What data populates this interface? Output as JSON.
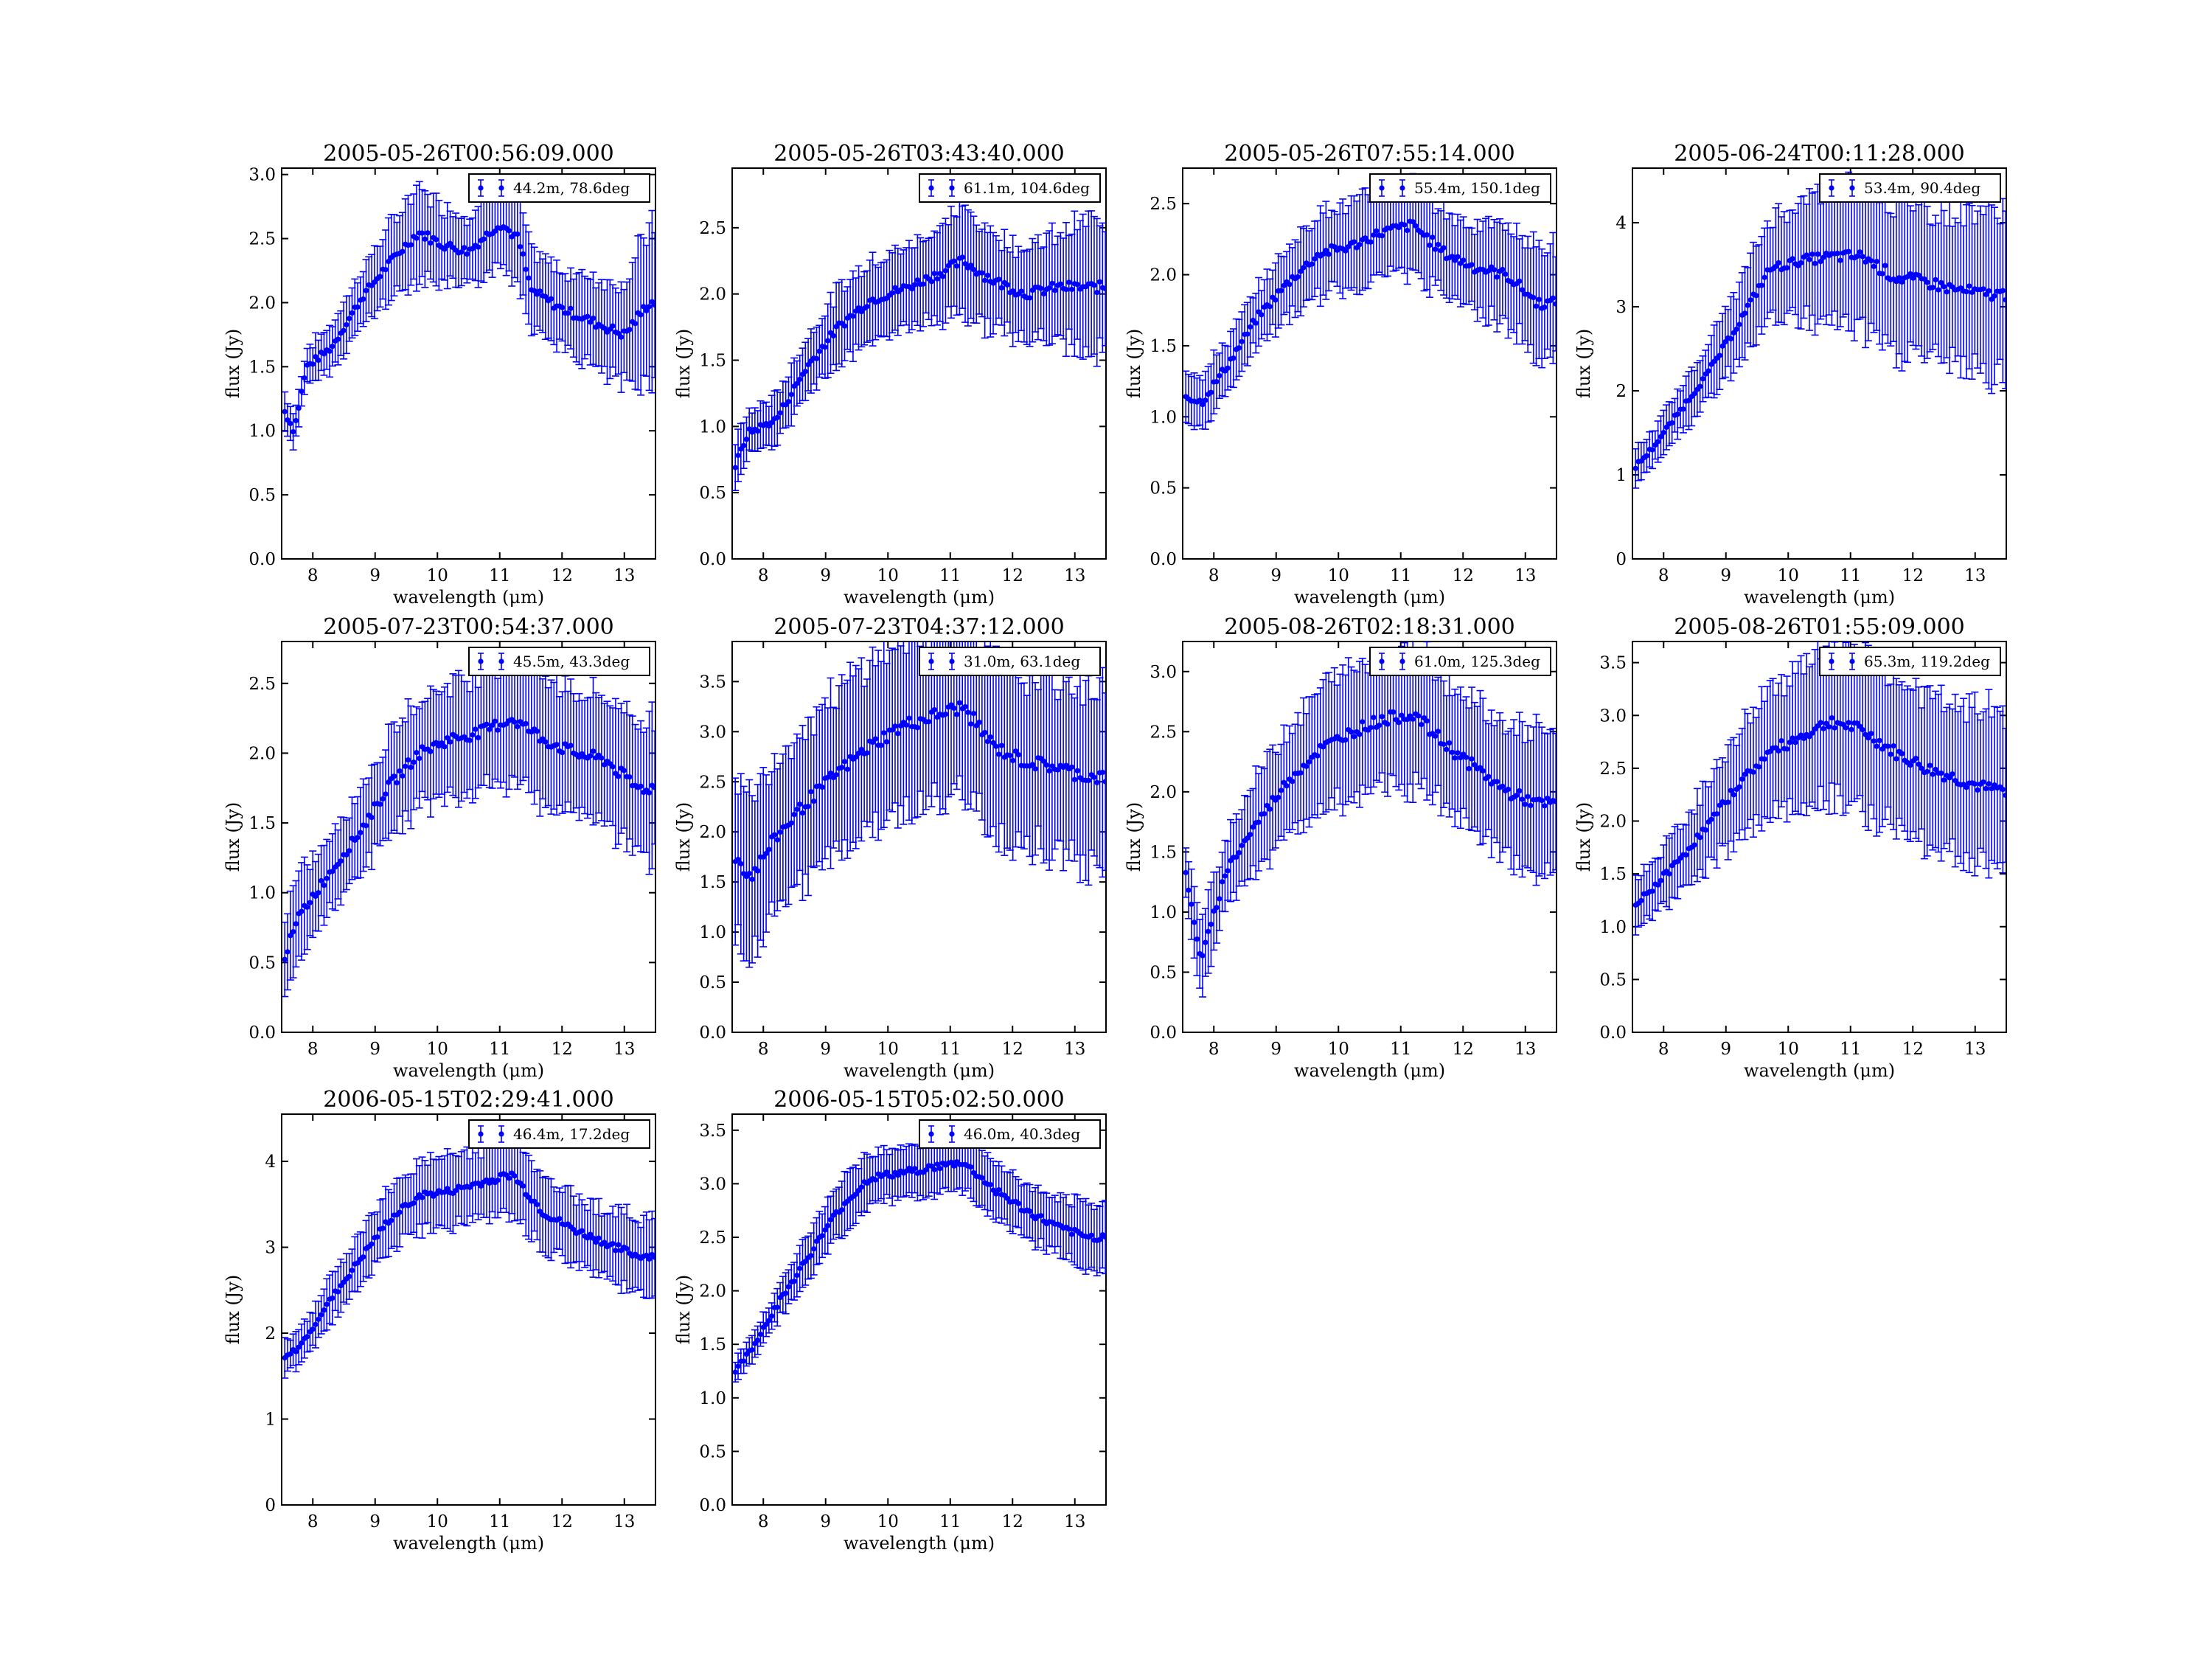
{
  "series_color": "#0000ff",
  "chart_data": [
    {
      "type": "scatter",
      "title": "2005-05-26T00:56:09.000",
      "xlabel": "wavelength (μm)",
      "ylabel": "flux (Jy)",
      "xlim": [
        7.5,
        13.5
      ],
      "ylim": [
        0,
        3.05
      ],
      "yticks": [
        "0.0",
        "0.5",
        "1.0",
        "1.5",
        "2.0",
        "2.5",
        "3.0"
      ],
      "xticks": [
        "8",
        "9",
        "10",
        "11",
        "12",
        "13"
      ],
      "legend": "44.2m, 78.6deg",
      "legend_position": "top-right",
      "grid": false,
      "points": [
        [
          7.55,
          1.15,
          0.15
        ],
        [
          7.7,
          1.0,
          0.12
        ],
        [
          7.9,
          1.5,
          0.15
        ],
        [
          8.3,
          1.65,
          0.17
        ],
        [
          8.8,
          2.05,
          0.22
        ],
        [
          9.3,
          2.35,
          0.3
        ],
        [
          9.7,
          2.55,
          0.35
        ],
        [
          10.1,
          2.45,
          0.3
        ],
        [
          10.5,
          2.4,
          0.28
        ],
        [
          11.0,
          2.62,
          0.3
        ],
        [
          11.3,
          2.5,
          0.35
        ],
        [
          11.5,
          2.1,
          0.3
        ],
        [
          12.0,
          1.95,
          0.3
        ],
        [
          12.5,
          1.85,
          0.35
        ],
        [
          13.0,
          1.75,
          0.4
        ],
        [
          13.4,
          2.0,
          0.6
        ]
      ]
    },
    {
      "type": "scatter",
      "title": "2005-05-26T03:43:40.000",
      "xlabel": "wavelength (μm)",
      "ylabel": "flux (Jy)",
      "xlim": [
        7.5,
        13.5
      ],
      "ylim": [
        0,
        2.95
      ],
      "yticks": [
        "0.0",
        "0.5",
        "1.0",
        "1.5",
        "2.0",
        "2.5"
      ],
      "xticks": [
        "8",
        "9",
        "10",
        "11",
        "12",
        "13"
      ],
      "legend": "61.1m, 104.6deg",
      "legend_position": "top-right",
      "grid": false,
      "points": [
        [
          7.55,
          0.7,
          0.2
        ],
        [
          7.75,
          0.95,
          0.15
        ],
        [
          8.2,
          1.05,
          0.18
        ],
        [
          8.7,
          1.45,
          0.22
        ],
        [
          9.2,
          1.75,
          0.28
        ],
        [
          9.7,
          1.95,
          0.3
        ],
        [
          10.3,
          2.05,
          0.3
        ],
        [
          10.8,
          2.15,
          0.35
        ],
        [
          11.2,
          2.25,
          0.4
        ],
        [
          11.7,
          2.1,
          0.35
        ],
        [
          12.2,
          2.0,
          0.35
        ],
        [
          12.7,
          2.05,
          0.4
        ],
        [
          13.2,
          2.05,
          0.5
        ]
      ]
    },
    {
      "type": "scatter",
      "title": "2005-05-26T07:55:14.000",
      "xlabel": "wavelength (μm)",
      "ylabel": "flux (Jy)",
      "xlim": [
        7.5,
        13.5
      ],
      "ylim": [
        0,
        2.75
      ],
      "yticks": [
        "0.0",
        "0.5",
        "1.0",
        "1.5",
        "2.0",
        "2.5"
      ],
      "xticks": [
        "8",
        "9",
        "10",
        "11",
        "12",
        "13"
      ],
      "legend": "55.4m, 150.1deg",
      "legend_position": "top-right",
      "grid": false,
      "points": [
        [
          7.55,
          1.15,
          0.2
        ],
        [
          7.8,
          1.1,
          0.2
        ],
        [
          8.2,
          1.35,
          0.18
        ],
        [
          8.7,
          1.7,
          0.2
        ],
        [
          9.2,
          1.95,
          0.25
        ],
        [
          9.7,
          2.15,
          0.3
        ],
        [
          10.2,
          2.2,
          0.3
        ],
        [
          10.7,
          2.3,
          0.3
        ],
        [
          11.2,
          2.35,
          0.35
        ],
        [
          11.7,
          2.15,
          0.3
        ],
        [
          12.2,
          2.05,
          0.3
        ],
        [
          12.7,
          2.0,
          0.35
        ],
        [
          13.2,
          1.8,
          0.4
        ]
      ]
    },
    {
      "type": "scatter",
      "title": "2005-06-24T00:11:28.000",
      "xlabel": "wavelength (μm)",
      "ylabel": "flux (Jy)",
      "xlim": [
        7.5,
        13.5
      ],
      "ylim": [
        0,
        4.65
      ],
      "yticks": [
        "0",
        "1",
        "2",
        "3",
        "4"
      ],
      "xticks": [
        "8",
        "9",
        "10",
        "11",
        "12",
        "13"
      ],
      "legend": "53.4m, 90.4deg",
      "legend_position": "top-right",
      "grid": false,
      "points": [
        [
          7.55,
          1.1,
          0.2
        ],
        [
          7.8,
          1.3,
          0.2
        ],
        [
          8.2,
          1.7,
          0.25
        ],
        [
          8.7,
          2.2,
          0.35
        ],
        [
          9.2,
          2.8,
          0.45
        ],
        [
          9.7,
          3.45,
          0.6
        ],
        [
          10.2,
          3.55,
          0.7
        ],
        [
          10.7,
          3.6,
          0.8
        ],
        [
          11.2,
          3.6,
          0.9
        ],
        [
          11.7,
          3.35,
          0.9
        ],
        [
          12.2,
          3.3,
          0.9
        ],
        [
          12.7,
          3.2,
          0.9
        ],
        [
          13.2,
          3.15,
          1.0
        ]
      ]
    },
    {
      "type": "scatter",
      "title": "2005-07-23T00:54:37.000",
      "xlabel": "wavelength (μm)",
      "ylabel": "flux (Jy)",
      "xlim": [
        7.5,
        13.5
      ],
      "ylim": [
        0,
        2.8
      ],
      "yticks": [
        "0.0",
        "0.5",
        "1.0",
        "1.5",
        "2.0",
        "2.5"
      ],
      "xticks": [
        "8",
        "9",
        "10",
        "11",
        "12",
        "13"
      ],
      "legend": "45.5m, 43.3deg",
      "legend_position": "top-right",
      "grid": false,
      "points": [
        [
          7.55,
          0.55,
          0.3
        ],
        [
          7.8,
          0.85,
          0.3
        ],
        [
          8.2,
          1.1,
          0.25
        ],
        [
          8.7,
          1.4,
          0.3
        ],
        [
          9.2,
          1.75,
          0.35
        ],
        [
          9.7,
          2.0,
          0.4
        ],
        [
          10.2,
          2.1,
          0.4
        ],
        [
          10.7,
          2.15,
          0.45
        ],
        [
          11.2,
          2.25,
          0.45
        ],
        [
          11.7,
          2.1,
          0.45
        ],
        [
          12.2,
          2.0,
          0.45
        ],
        [
          12.7,
          1.95,
          0.45
        ],
        [
          13.2,
          1.75,
          0.5
        ]
      ]
    },
    {
      "type": "scatter",
      "title": "2005-07-23T04:37:12.000",
      "xlabel": "wavelength (μm)",
      "ylabel": "flux (Jy)",
      "xlim": [
        7.5,
        13.5
      ],
      "ylim": [
        0,
        3.9
      ],
      "yticks": [
        "0.0",
        "0.5",
        "1.0",
        "1.5",
        "2.0",
        "2.5",
        "3.0",
        "3.5"
      ],
      "xticks": [
        "8",
        "9",
        "10",
        "11",
        "12",
        "13"
      ],
      "legend": "31.0m, 63.1deg",
      "legend_position": "top-right",
      "grid": false,
      "points": [
        [
          7.55,
          1.75,
          0.8
        ],
        [
          7.8,
          1.55,
          0.8
        ],
        [
          8.2,
          1.95,
          0.8
        ],
        [
          8.7,
          2.3,
          0.8
        ],
        [
          9.2,
          2.6,
          0.8
        ],
        [
          9.7,
          2.85,
          0.85
        ],
        [
          10.2,
          3.05,
          0.85
        ],
        [
          10.7,
          3.15,
          0.9
        ],
        [
          11.2,
          3.25,
          0.9
        ],
        [
          11.7,
          2.85,
          0.85
        ],
        [
          12.2,
          2.7,
          0.85
        ],
        [
          12.7,
          2.65,
          0.85
        ],
        [
          13.2,
          2.55,
          0.9
        ]
      ]
    },
    {
      "type": "scatter",
      "title": "2005-08-26T02:18:31.000",
      "xlabel": "wavelength (μm)",
      "ylabel": "flux (Jy)",
      "xlim": [
        7.5,
        13.5
      ],
      "ylim": [
        0,
        3.25
      ],
      "yticks": [
        "0.0",
        "0.5",
        "1.0",
        "1.5",
        "2.0",
        "2.5",
        "3.0"
      ],
      "xticks": [
        "8",
        "9",
        "10",
        "11",
        "12",
        "13"
      ],
      "legend": "61.0m, 125.3deg",
      "legend_position": "top-right",
      "grid": false,
      "points": [
        [
          7.55,
          1.3,
          0.25
        ],
        [
          7.8,
          0.6,
          0.3
        ],
        [
          8.2,
          1.35,
          0.3
        ],
        [
          8.7,
          1.75,
          0.4
        ],
        [
          9.2,
          2.1,
          0.45
        ],
        [
          9.7,
          2.35,
          0.5
        ],
        [
          10.2,
          2.5,
          0.55
        ],
        [
          10.7,
          2.6,
          0.55
        ],
        [
          11.2,
          2.65,
          0.6
        ],
        [
          11.7,
          2.4,
          0.55
        ],
        [
          12.2,
          2.2,
          0.55
        ],
        [
          12.7,
          2.0,
          0.55
        ],
        [
          13.2,
          1.9,
          0.6
        ]
      ]
    },
    {
      "type": "scatter",
      "title": "2005-08-26T01:55:09.000",
      "xlabel": "wavelength (μm)",
      "ylabel": "flux (Jy)",
      "xlim": [
        7.5,
        13.5
      ],
      "ylim": [
        0,
        3.7
      ],
      "yticks": [
        "0.0",
        "0.5",
        "1.0",
        "1.5",
        "2.0",
        "2.5",
        "3.0",
        "3.5"
      ],
      "xticks": [
        "8",
        "9",
        "10",
        "11",
        "12",
        "13"
      ],
      "legend": "65.3m, 119.2deg",
      "legend_position": "top-right",
      "grid": false,
      "points": [
        [
          7.55,
          1.2,
          0.25
        ],
        [
          7.8,
          1.35,
          0.25
        ],
        [
          8.2,
          1.6,
          0.3
        ],
        [
          8.7,
          1.95,
          0.4
        ],
        [
          9.2,
          2.35,
          0.5
        ],
        [
          9.7,
          2.65,
          0.6
        ],
        [
          10.2,
          2.8,
          0.65
        ],
        [
          10.7,
          2.95,
          0.7
        ],
        [
          11.2,
          2.85,
          0.75
        ],
        [
          11.7,
          2.65,
          0.7
        ],
        [
          12.2,
          2.5,
          0.7
        ],
        [
          12.7,
          2.4,
          0.7
        ],
        [
          13.2,
          2.3,
          0.75
        ]
      ]
    },
    {
      "type": "scatter",
      "title": "2006-05-15T02:29:41.000",
      "xlabel": "wavelength (μm)",
      "ylabel": "flux (Jy)",
      "xlim": [
        7.5,
        13.5
      ],
      "ylim": [
        0,
        4.55
      ],
      "yticks": [
        "0",
        "1",
        "2",
        "3",
        "4"
      ],
      "xticks": [
        "8",
        "9",
        "10",
        "11",
        "12",
        "13"
      ],
      "legend": "46.4m, 17.2deg",
      "legend_position": "top-right",
      "grid": false,
      "points": [
        [
          7.55,
          1.7,
          0.2
        ],
        [
          7.8,
          1.85,
          0.2
        ],
        [
          8.2,
          2.3,
          0.25
        ],
        [
          8.7,
          2.8,
          0.3
        ],
        [
          9.2,
          3.3,
          0.35
        ],
        [
          9.7,
          3.6,
          0.4
        ],
        [
          10.2,
          3.65,
          0.4
        ],
        [
          10.7,
          3.75,
          0.4
        ],
        [
          11.2,
          3.85,
          0.45
        ],
        [
          11.7,
          3.4,
          0.4
        ],
        [
          12.2,
          3.2,
          0.4
        ],
        [
          12.7,
          3.05,
          0.4
        ],
        [
          13.2,
          2.9,
          0.45
        ]
      ]
    },
    {
      "type": "scatter",
      "title": "2006-05-15T05:02:50.000",
      "xlabel": "wavelength (μm)",
      "ylabel": "flux (Jy)",
      "xlim": [
        7.5,
        13.5
      ],
      "ylim": [
        0,
        3.65
      ],
      "yticks": [
        "0.0",
        "0.5",
        "1.0",
        "1.5",
        "2.0",
        "2.5",
        "3.0",
        "3.5"
      ],
      "xticks": [
        "8",
        "9",
        "10",
        "11",
        "12",
        "13"
      ],
      "legend": "46.0m, 40.3deg",
      "legend_position": "top-right",
      "grid": false,
      "points": [
        [
          7.55,
          1.25,
          0.1
        ],
        [
          7.8,
          1.45,
          0.12
        ],
        [
          8.2,
          1.85,
          0.15
        ],
        [
          8.7,
          2.3,
          0.2
        ],
        [
          9.2,
          2.75,
          0.25
        ],
        [
          9.7,
          3.05,
          0.25
        ],
        [
          10.2,
          3.1,
          0.25
        ],
        [
          10.7,
          3.15,
          0.25
        ],
        [
          11.2,
          3.2,
          0.25
        ],
        [
          11.7,
          2.95,
          0.25
        ],
        [
          12.2,
          2.75,
          0.25
        ],
        [
          12.7,
          2.6,
          0.25
        ],
        [
          13.2,
          2.5,
          0.3
        ]
      ]
    }
  ]
}
